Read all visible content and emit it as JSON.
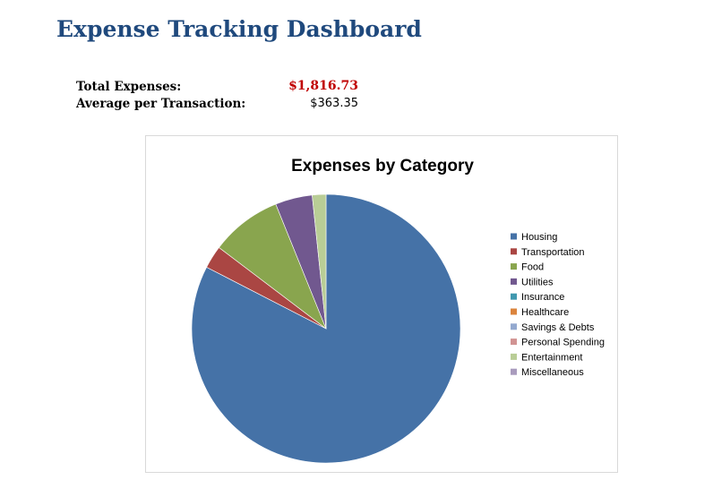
{
  "page": {
    "title": "Expense Tracking Dashboard"
  },
  "summary": {
    "total_label": "Total Expenses:",
    "total_value": "$1,816.73",
    "average_label": "Average per Transaction:",
    "average_value": "$363.35"
  },
  "chart_data": {
    "type": "pie",
    "title": "Expenses by Category",
    "legend_position": "right",
    "categories": [
      "Housing",
      "Transportation",
      "Food",
      "Utilities",
      "Insurance",
      "Healthcare",
      "Savings & Debts",
      "Personal Spending",
      "Entertainment",
      "Miscellaneous"
    ],
    "values": [
      1500.0,
      50.0,
      155.73,
      81.0,
      0,
      0,
      0,
      0,
      30.0,
      0
    ],
    "colors": [
      "#4572a7",
      "#aa4643",
      "#89a54e",
      "#71588f",
      "#4198af",
      "#db843d",
      "#93a9cf",
      "#d19392",
      "#b9cd96",
      "#a99bbd"
    ]
  }
}
